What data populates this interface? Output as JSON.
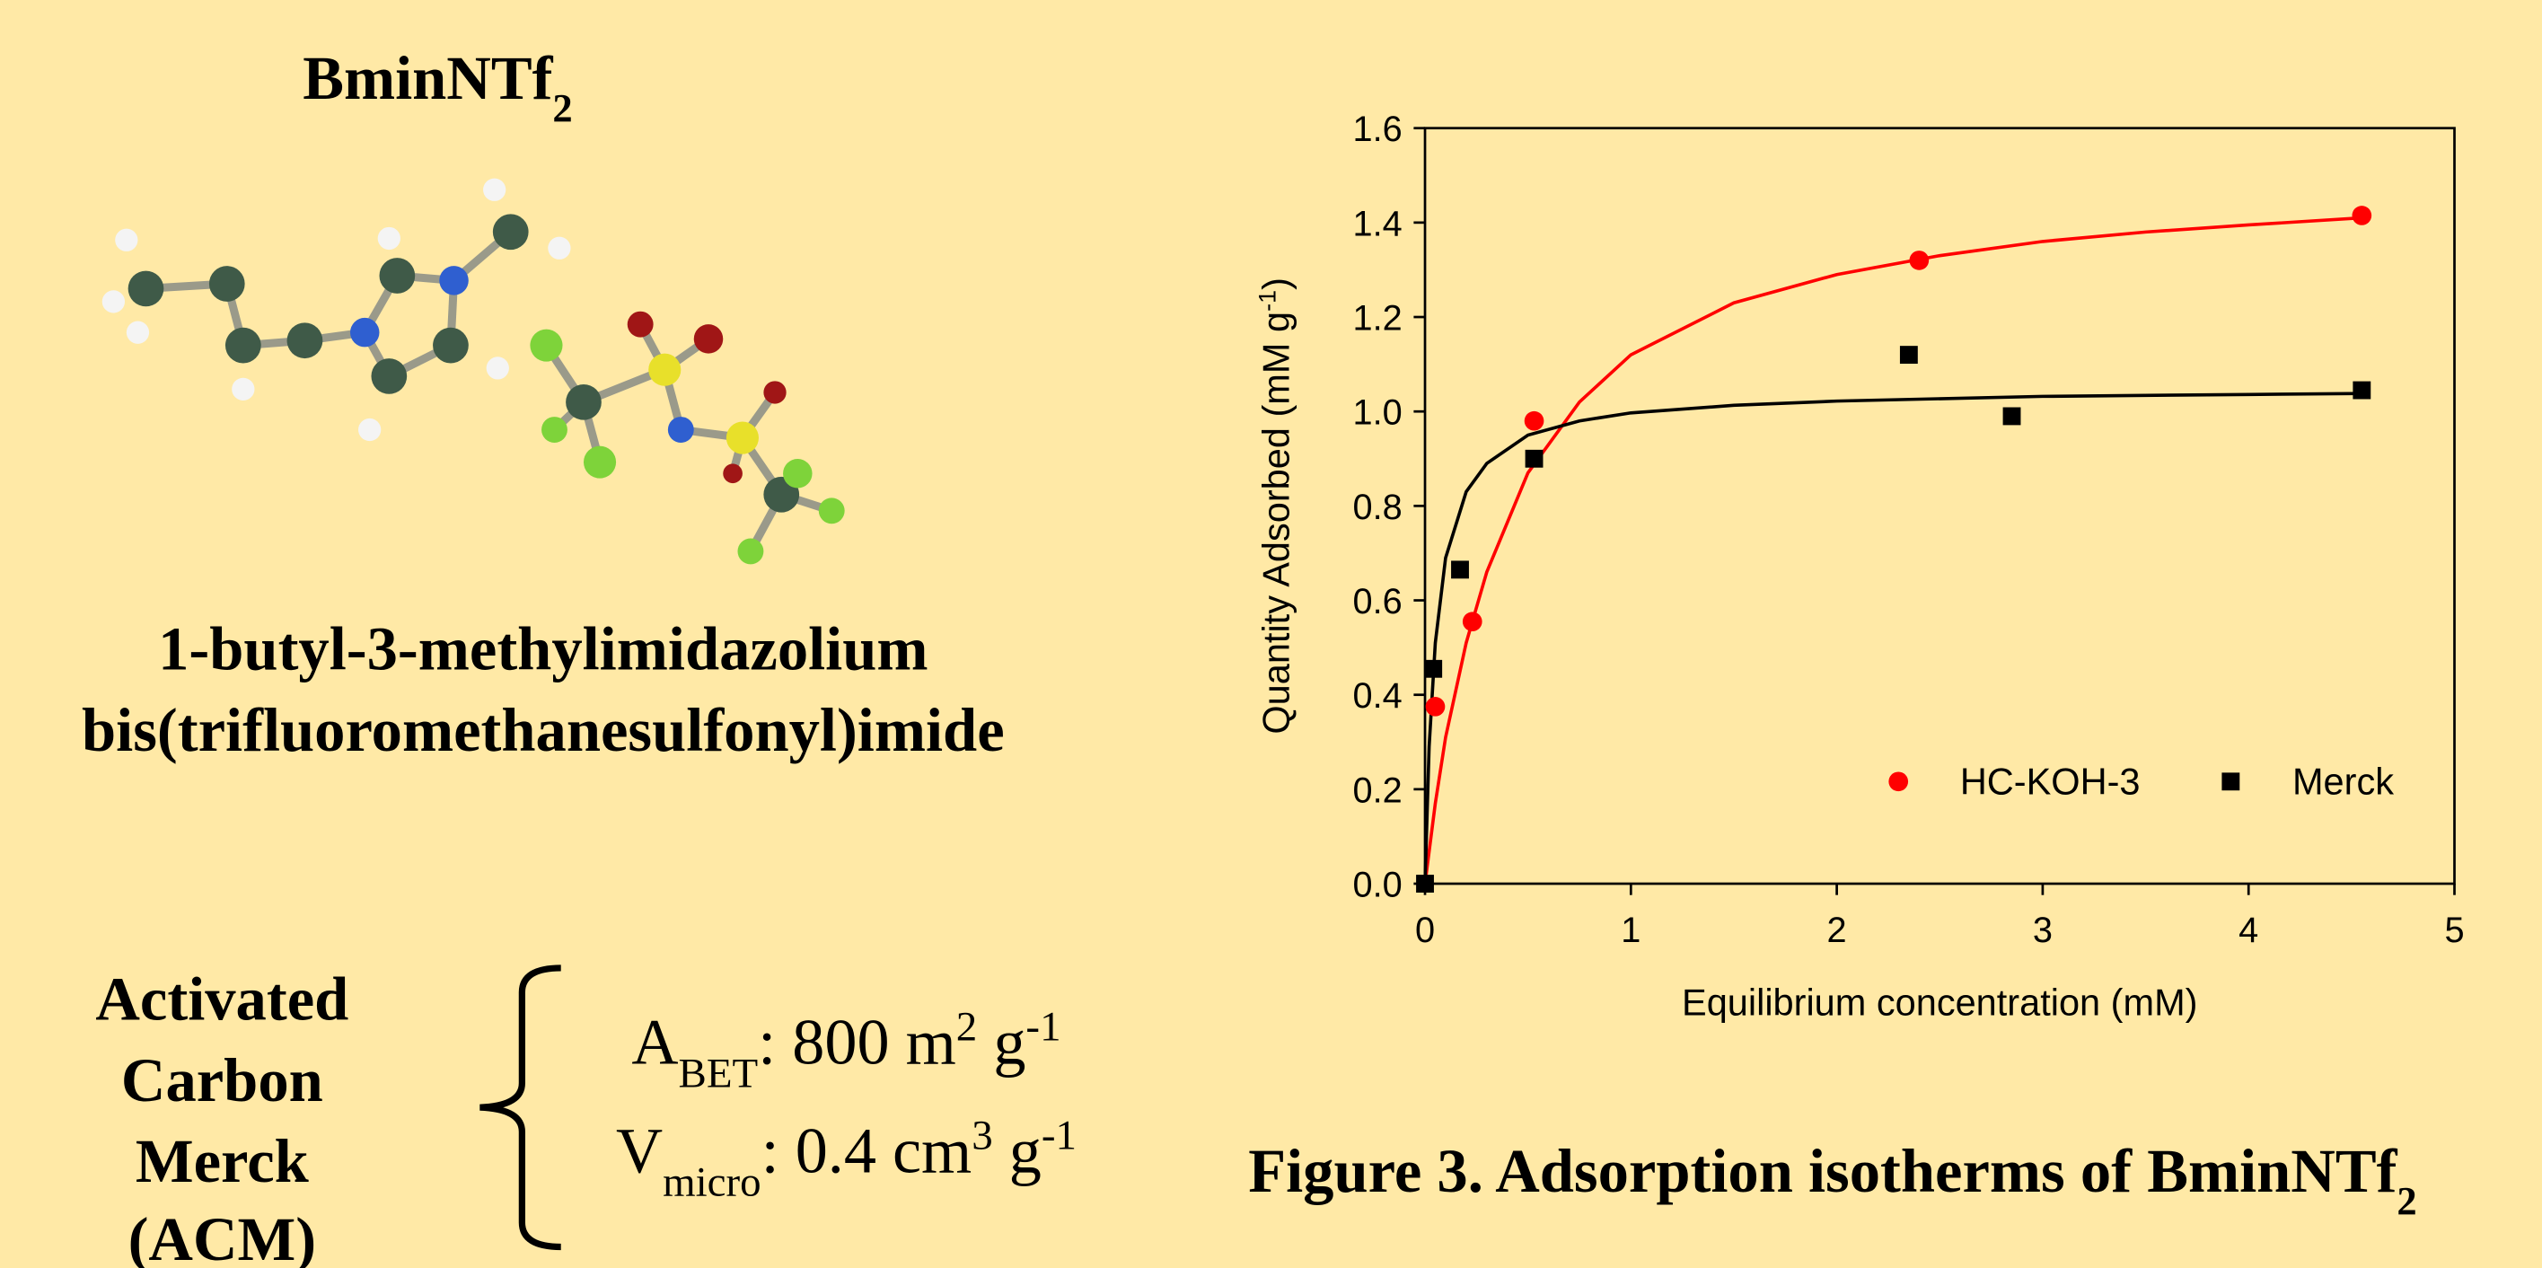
{
  "compound": [
    {
      "text": "BminNTf"
    },
    {
      "text": "2",
      "sub": true
    }
  ],
  "compound_name": [
    "1-butyl-3-methylimidazolium",
    "bis(trifluoromethanesulfonyl)imide"
  ],
  "sorbent": [
    "Activated",
    "Carbon",
    "Merck",
    "(ACM)"
  ],
  "properties": [
    [
      {
        "text": "A"
      },
      {
        "text": "BET",
        "sub": true
      },
      {
        "text": ": 800 m"
      },
      {
        "text": "2",
        "sup": true
      },
      {
        "text": " g"
      },
      {
        "text": "-1",
        "sup": true
      }
    ],
    [
      {
        "text": "V"
      },
      {
        "text": "micro",
        "sub": true
      },
      {
        "text": ": 0.4 cm"
      },
      {
        "text": "3",
        "sup": true
      },
      {
        "text": " g"
      },
      {
        "text": "-1",
        "sup": true
      }
    ]
  ],
  "caption": [
    {
      "text": "Figure 3. Adsorption isotherms of BminNTf"
    },
    {
      "text": "2",
      "sub": true
    }
  ],
  "chart_data": {
    "type": "scatter",
    "x_label": [
      {
        "text": "Equilibrium concentration (mM)"
      }
    ],
    "y_label": [
      {
        "text": "Quantity Adsorbed (mM g"
      },
      {
        "text": "-1",
        "sup": true
      },
      {
        "text": ")"
      }
    ],
    "xlim": [
      0,
      5
    ],
    "xticks": [
      0,
      1,
      2,
      3,
      4,
      5
    ],
    "ylim": [
      0,
      1.6
    ],
    "yticks": [
      {
        "value": 0,
        "label": "0.0"
      },
      0.2,
      0.4,
      0.6,
      0.8,
      {
        "value": 1,
        "label": "1.0"
      },
      1.2,
      1.4,
      1.6
    ],
    "legend": "lower right",
    "series": [
      {
        "name": "HC-KOH-3",
        "color": "#ff0000",
        "marker": "circle",
        "x": [
          0.05,
          0.23,
          0.53,
          2.4,
          4.55
        ],
        "values": [
          0.375,
          0.555,
          0.98,
          1.32,
          1.415
        ]
      },
      {
        "name": "Merck",
        "color": "#000000",
        "marker": "square",
        "x": [
          0,
          0.04,
          0.17,
          0.53,
          2.35,
          2.85,
          4.55
        ],
        "values": [
          0,
          0.455,
          0.665,
          0.9,
          1.12,
          0.99,
          1.045
        ]
      },
      {
        "color": "#ff0000",
        "mode": "line",
        "x": [
          0,
          0.05,
          0.1,
          0.2,
          0.3,
          0.5,
          0.75,
          1,
          1.5,
          2,
          2.5,
          3,
          3.5,
          4,
          4.55
        ],
        "values": [
          0,
          0.17,
          0.31,
          0.51,
          0.66,
          0.87,
          1.02,
          1.12,
          1.23,
          1.29,
          1.33,
          1.36,
          1.38,
          1.395,
          1.41
        ]
      },
      {
        "color": "#000000",
        "mode": "line",
        "x": [
          0,
          0.02,
          0.05,
          0.1,
          0.2,
          0.3,
          0.5,
          0.75,
          1,
          1.5,
          2,
          3,
          4,
          4.55
        ],
        "values": [
          0,
          0.29,
          0.51,
          0.69,
          0.83,
          0.89,
          0.95,
          0.98,
          0.997,
          1.013,
          1.022,
          1.032,
          1.036,
          1.038
        ]
      }
    ]
  }
}
